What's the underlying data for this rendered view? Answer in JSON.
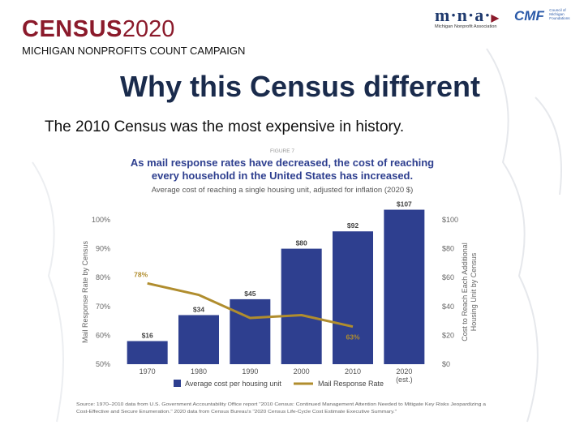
{
  "header": {
    "brand_bold": "CENSUS",
    "brand_year": "2020",
    "subbrand": "MICHIGAN NONPROFITS COUNT CAMPAIGN",
    "mna_logo": "m·n·a·",
    "mna_tagline": "Michigan Nonprofit Association",
    "cmf_logo": "CMF",
    "cmf_side": [
      "Council of",
      "Michigan",
      "Foundations"
    ]
  },
  "slide": {
    "title": "Why this Census different",
    "subtitle": "The 2010 Census was the most expensive in history."
  },
  "chart_data": {
    "type": "bar",
    "figure_label": "FIGURE 7",
    "title": "As mail response rates have decreased, the cost of reaching every household in the United States has increased.",
    "title_lines": [
      "As mail response rates have decreased, the cost of reaching",
      "every household in the United States has increased."
    ],
    "subtitle": "Average cost of reaching a single housing unit, adjusted for inflation (2020 $)",
    "categories": [
      "1970",
      "1980",
      "1990",
      "2000",
      "2010",
      "2020"
    ],
    "category_notes": [
      "",
      "",
      "",
      "",
      "",
      "(est.)"
    ],
    "series": [
      {
        "name": "Average cost per housing unit",
        "kind": "bar",
        "axis": "right",
        "values": [
          16,
          34,
          45,
          80,
          92,
          107
        ],
        "labels": [
          "$16",
          "$34",
          "$45",
          "$80",
          "$92",
          "$107"
        ]
      },
      {
        "name": "Mail Response Rate",
        "kind": "line",
        "axis": "left",
        "values": [
          78,
          74,
          66,
          67,
          63,
          null
        ],
        "labels": [
          "78%",
          "",
          "",
          "",
          "63%",
          ""
        ]
      }
    ],
    "left_axis": {
      "label": "Mail Response Rate by Census",
      "range": [
        50,
        100
      ],
      "ticks": [
        "50%",
        "60%",
        "70%",
        "80%",
        "90%",
        "100%"
      ]
    },
    "right_axis": {
      "label_lines": [
        "Cost to Reach Each Additional",
        "Housing Unit by Census"
      ],
      "range": [
        0,
        100
      ],
      "ticks": [
        "$0",
        "$20",
        "$40",
        "$60",
        "$80",
        "$100"
      ]
    },
    "legend_placement": "bottom",
    "grid": false,
    "source_lines": [
      "Source: 1970–2010 data from U.S. Government Accountability Office report \"2010 Census: Continued Management Attention Needed to Mitigate Key Risks Jeopardizing a",
      "Cost-Effective and Secure Enumeration.\" 2020 data from Census Bureau's \"2020 Census Life-Cycle Cost Estimate Executive Summary.\""
    ],
    "colors": {
      "bar": "#2e3f8f",
      "line": "#b08d2e",
      "title": "#2e3f8f",
      "text": "#333333"
    }
  }
}
